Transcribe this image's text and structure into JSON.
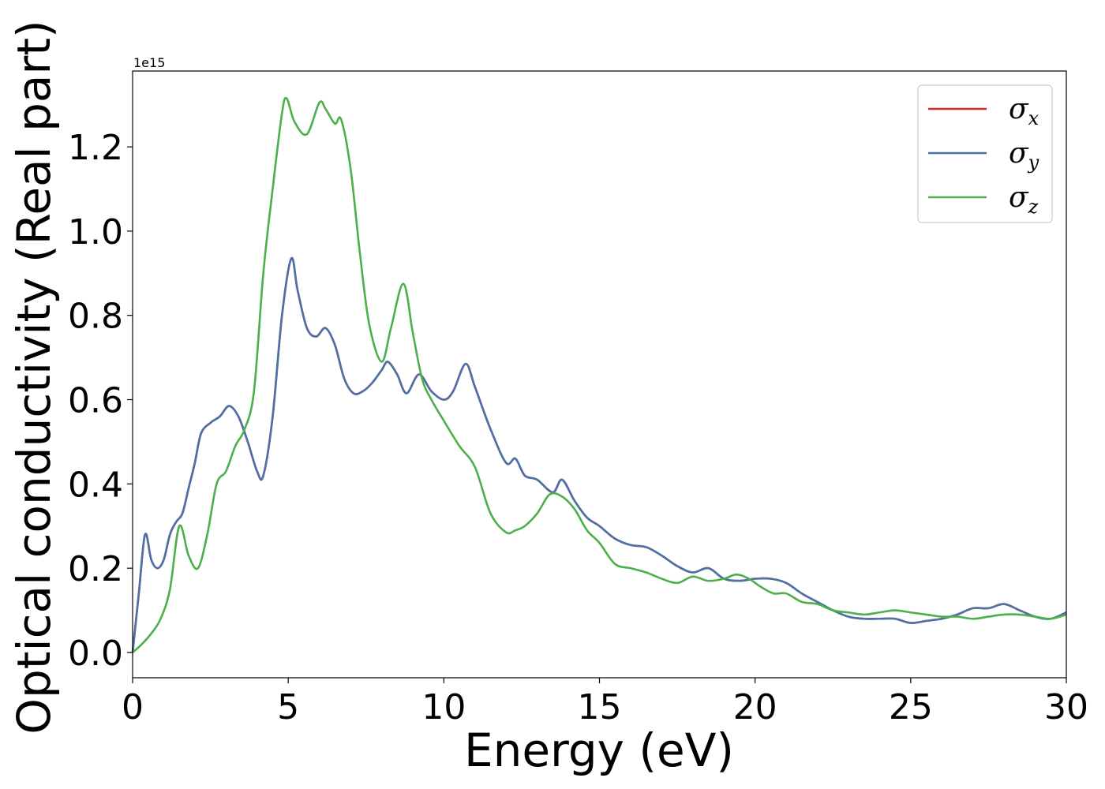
{
  "chart_data": {
    "type": "line",
    "title": "",
    "xlabel": "Energy (eV)",
    "ylabel": "Optical conductivity (Real part)",
    "y_offset_label": "1e15",
    "xlim": [
      0,
      30
    ],
    "ylim": [
      -0.06,
      1.38
    ],
    "xticks": [
      0,
      5,
      10,
      15,
      20,
      25,
      30
    ],
    "xtick_labels": [
      "0",
      "5",
      "10",
      "15",
      "20",
      "25",
      "30"
    ],
    "yticks": [
      0.0,
      0.2,
      0.4,
      0.6,
      0.8,
      1.0,
      1.2
    ],
    "ytick_labels": [
      "0.0",
      "0.2",
      "0.4",
      "0.6",
      "0.8",
      "1.0",
      "1.2"
    ],
    "grid": false,
    "legend_position": "top-right",
    "series": [
      {
        "name": "σ_x",
        "legend_symbol": "σ",
        "legend_sub": "x",
        "color": "#d62728",
        "x": [
          0,
          0.2,
          0.4,
          0.6,
          0.8,
          1.0,
          1.2,
          1.4,
          1.6,
          1.8,
          2.0,
          2.2,
          2.5,
          2.8,
          3.1,
          3.4,
          3.7,
          4.0,
          4.2,
          4.5,
          4.8,
          5.1,
          5.3,
          5.6,
          5.9,
          6.2,
          6.5,
          6.8,
          7.1,
          7.4,
          7.7,
          8.0,
          8.2,
          8.5,
          8.8,
          9.2,
          9.6,
          10.0,
          10.3,
          10.7,
          11.0,
          11.5,
          12.0,
          12.3,
          12.6,
          13.0,
          13.5,
          13.8,
          14.2,
          14.6,
          15.0,
          15.5,
          16.0,
          16.5,
          17.0,
          17.5,
          18.0,
          18.5,
          19.0,
          19.5,
          20.0,
          20.5,
          21.0,
          21.5,
          22.0,
          22.5,
          23.0,
          23.5,
          24.0,
          24.5,
          25.0,
          25.5,
          26.0,
          26.5,
          27.0,
          27.5,
          28.0,
          28.5,
          29.0,
          29.5,
          30.0
        ],
        "y": [
          0.0,
          0.14,
          0.28,
          0.22,
          0.2,
          0.22,
          0.28,
          0.31,
          0.33,
          0.39,
          0.45,
          0.52,
          0.545,
          0.56,
          0.585,
          0.56,
          0.5,
          0.43,
          0.42,
          0.56,
          0.8,
          0.935,
          0.86,
          0.77,
          0.75,
          0.77,
          0.73,
          0.65,
          0.615,
          0.62,
          0.64,
          0.67,
          0.69,
          0.66,
          0.615,
          0.66,
          0.62,
          0.6,
          0.62,
          0.685,
          0.63,
          0.53,
          0.45,
          0.46,
          0.42,
          0.41,
          0.38,
          0.41,
          0.36,
          0.32,
          0.3,
          0.27,
          0.255,
          0.25,
          0.23,
          0.205,
          0.19,
          0.2,
          0.175,
          0.17,
          0.175,
          0.175,
          0.165,
          0.14,
          0.12,
          0.1,
          0.085,
          0.08,
          0.08,
          0.08,
          0.07,
          0.075,
          0.08,
          0.09,
          0.105,
          0.105,
          0.115,
          0.1,
          0.085,
          0.08,
          0.095
        ]
      },
      {
        "name": "σ_y",
        "legend_symbol": "σ",
        "legend_sub": "y",
        "color": "#4a72a8",
        "x": [
          0,
          0.2,
          0.4,
          0.6,
          0.8,
          1.0,
          1.2,
          1.4,
          1.6,
          1.8,
          2.0,
          2.2,
          2.5,
          2.8,
          3.1,
          3.4,
          3.7,
          4.0,
          4.2,
          4.5,
          4.8,
          5.1,
          5.3,
          5.6,
          5.9,
          6.2,
          6.5,
          6.8,
          7.1,
          7.4,
          7.7,
          8.0,
          8.2,
          8.5,
          8.8,
          9.2,
          9.6,
          10.0,
          10.3,
          10.7,
          11.0,
          11.5,
          12.0,
          12.3,
          12.6,
          13.0,
          13.5,
          13.8,
          14.2,
          14.6,
          15.0,
          15.5,
          16.0,
          16.5,
          17.0,
          17.5,
          18.0,
          18.5,
          19.0,
          19.5,
          20.0,
          20.5,
          21.0,
          21.5,
          22.0,
          22.5,
          23.0,
          23.5,
          24.0,
          24.5,
          25.0,
          25.5,
          26.0,
          26.5,
          27.0,
          27.5,
          28.0,
          28.5,
          29.0,
          29.5,
          30.0
        ],
        "y": [
          0.0,
          0.14,
          0.28,
          0.22,
          0.2,
          0.22,
          0.28,
          0.31,
          0.33,
          0.39,
          0.45,
          0.52,
          0.545,
          0.56,
          0.585,
          0.56,
          0.5,
          0.43,
          0.42,
          0.56,
          0.8,
          0.935,
          0.86,
          0.77,
          0.75,
          0.77,
          0.73,
          0.65,
          0.615,
          0.62,
          0.64,
          0.67,
          0.69,
          0.66,
          0.615,
          0.66,
          0.62,
          0.6,
          0.62,
          0.685,
          0.63,
          0.53,
          0.45,
          0.46,
          0.42,
          0.41,
          0.38,
          0.41,
          0.36,
          0.32,
          0.3,
          0.27,
          0.255,
          0.25,
          0.23,
          0.205,
          0.19,
          0.2,
          0.175,
          0.17,
          0.175,
          0.175,
          0.165,
          0.14,
          0.12,
          0.1,
          0.085,
          0.08,
          0.08,
          0.08,
          0.07,
          0.075,
          0.08,
          0.09,
          0.105,
          0.105,
          0.115,
          0.1,
          0.085,
          0.08,
          0.095
        ]
      },
      {
        "name": "σ_z",
        "legend_symbol": "σ",
        "legend_sub": "z",
        "color": "#4daf4a",
        "x": [
          0,
          0.3,
          0.6,
          0.9,
          1.2,
          1.5,
          1.8,
          2.1,
          2.4,
          2.7,
          3.0,
          3.3,
          3.6,
          3.9,
          4.2,
          4.5,
          4.8,
          4.95,
          5.2,
          5.6,
          6.0,
          6.2,
          6.5,
          6.7,
          7.0,
          7.3,
          7.6,
          8.0,
          8.3,
          8.7,
          9.0,
          9.3,
          9.6,
          10.0,
          10.5,
          11.0,
          11.5,
          12.0,
          12.3,
          12.6,
          13.0,
          13.4,
          13.8,
          14.2,
          14.6,
          15.0,
          15.5,
          16.0,
          16.5,
          17.0,
          17.5,
          18.0,
          18.5,
          19.0,
          19.4,
          19.8,
          20.2,
          20.6,
          21.0,
          21.5,
          22.0,
          22.5,
          23.0,
          23.5,
          24.0,
          24.5,
          25.0,
          25.5,
          26.0,
          26.5,
          27.0,
          27.5,
          28.0,
          28.5,
          29.0,
          29.5,
          30.0
        ],
        "y": [
          0.0,
          0.02,
          0.045,
          0.08,
          0.15,
          0.3,
          0.23,
          0.2,
          0.28,
          0.4,
          0.43,
          0.49,
          0.53,
          0.62,
          0.9,
          1.1,
          1.28,
          1.315,
          1.26,
          1.23,
          1.305,
          1.29,
          1.255,
          1.265,
          1.15,
          0.95,
          0.78,
          0.69,
          0.77,
          0.875,
          0.76,
          0.65,
          0.6,
          0.55,
          0.49,
          0.44,
          0.33,
          0.285,
          0.29,
          0.3,
          0.33,
          0.375,
          0.37,
          0.34,
          0.29,
          0.26,
          0.21,
          0.2,
          0.19,
          0.175,
          0.165,
          0.18,
          0.17,
          0.175,
          0.185,
          0.175,
          0.155,
          0.14,
          0.14,
          0.12,
          0.115,
          0.1,
          0.095,
          0.09,
          0.095,
          0.1,
          0.095,
          0.09,
          0.085,
          0.085,
          0.08,
          0.085,
          0.09,
          0.09,
          0.085,
          0.08,
          0.09
        ]
      }
    ]
  }
}
